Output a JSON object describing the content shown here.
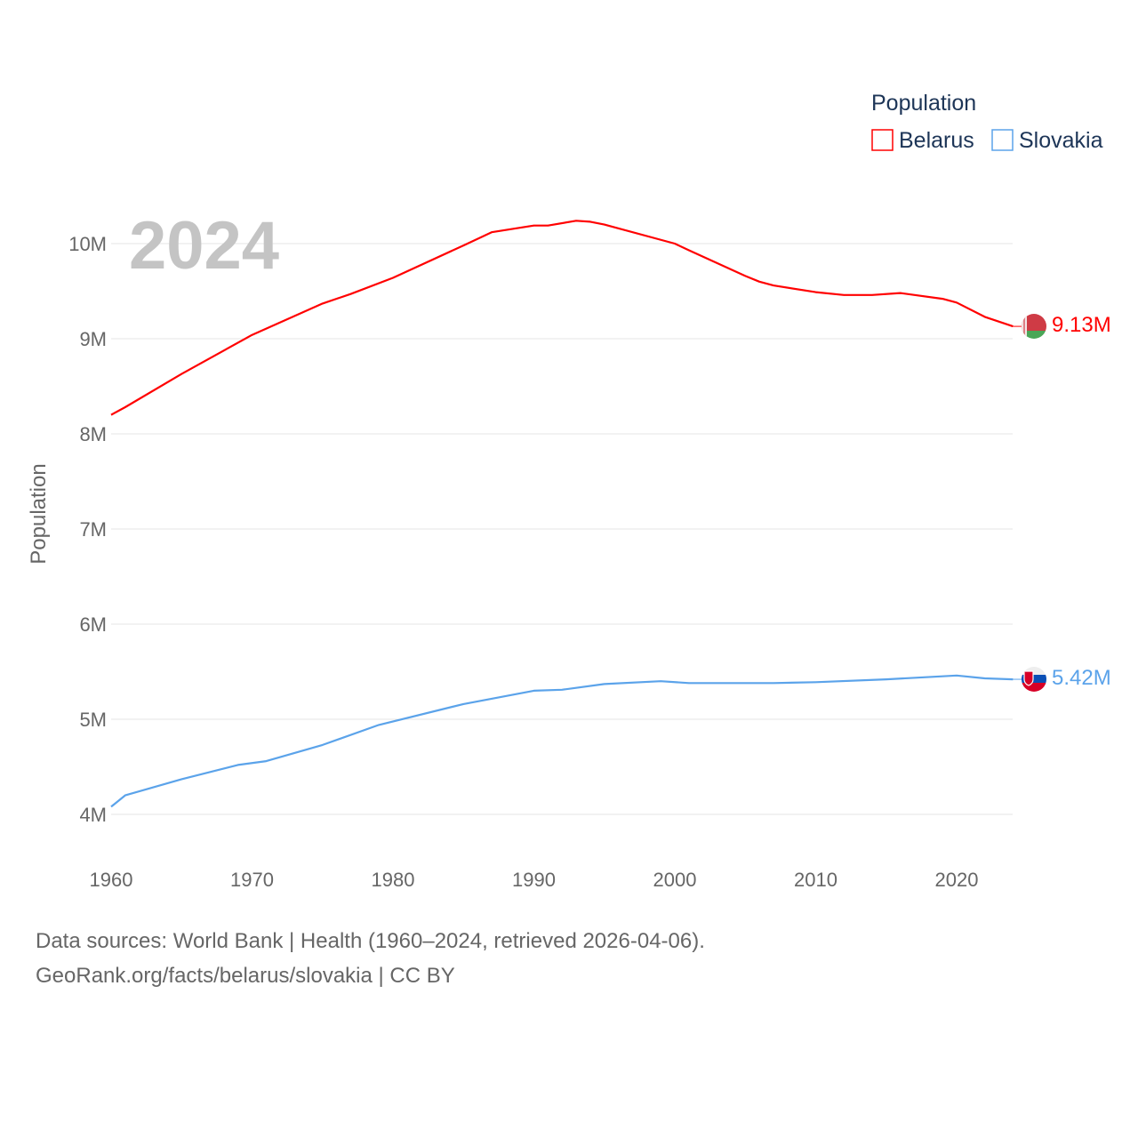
{
  "chart_data": {
    "type": "line",
    "title": "Population",
    "year_label": "2024",
    "xlabel": "",
    "ylabel": "Population",
    "xlim": [
      1960,
      2024
    ],
    "ylim": [
      4000000,
      10000000
    ],
    "x_ticks": [
      "1960",
      "1970",
      "1980",
      "1990",
      "2000",
      "2010",
      "2020"
    ],
    "y_ticks": [
      "4M",
      "5M",
      "6M",
      "7M",
      "8M",
      "9M",
      "10M"
    ],
    "legend": {
      "title": "Population",
      "placement": "top-right"
    },
    "series": [
      {
        "name": "Belarus",
        "color": "#ff0000",
        "end_label": "9.13M",
        "flag": "belarus-flag",
        "x": [
          1960,
          1961,
          1965,
          1970,
          1975,
          1977,
          1980,
          1985,
          1987,
          1990,
          1991,
          1993,
          1994,
          1995,
          2000,
          2001,
          2005,
          2006,
          2007,
          2010,
          2012,
          2014,
          2016,
          2019,
          2020,
          2022,
          2024
        ],
        "y": [
          8.2,
          8.28,
          8.63,
          9.04,
          9.37,
          9.47,
          9.64,
          9.98,
          10.12,
          10.19,
          10.19,
          10.24,
          10.23,
          10.2,
          10.0,
          9.93,
          9.66,
          9.6,
          9.56,
          9.49,
          9.46,
          9.46,
          9.48,
          9.42,
          9.38,
          9.23,
          9.13
        ]
      },
      {
        "name": "Slovakia",
        "color": "#5ba3ea",
        "end_label": "5.42M",
        "flag": "slovakia-flag",
        "x": [
          1960,
          1961,
          1965,
          1969,
          1971,
          1975,
          1979,
          1985,
          1990,
          1992,
          1995,
          1999,
          2001,
          2004,
          2007,
          2010,
          2015,
          2020,
          2022,
          2024
        ],
        "y": [
          4.08,
          4.2,
          4.37,
          4.52,
          4.56,
          4.73,
          4.94,
          5.16,
          5.3,
          5.31,
          5.37,
          5.4,
          5.38,
          5.38,
          5.38,
          5.39,
          5.42,
          5.46,
          5.43,
          5.42
        ]
      }
    ]
  },
  "footer": {
    "sources": "Data sources: World Bank | Health (1960–2024, retrieved 2026-04-06).",
    "credit": "GeoRank.org/facts/belarus/slovakia | CC BY"
  }
}
